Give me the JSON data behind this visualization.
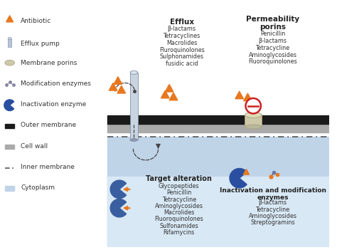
{
  "bg_color": "#ffffff",
  "antibiotic_color": "#e87820",
  "pump_body_color": "#c8d4e0",
  "pump_edge_color": "#8090a8",
  "porin_color": "#ccc8a8",
  "porin_edge": "#aaa080",
  "blue_target_color": "#3a5fa0",
  "inact_blue": "#2a4fa0",
  "outer_mem_color": "#1a1a1a",
  "cell_wall_color": "#aaaaaa",
  "cyto_color": "#c0d4e8",
  "cyto_grad_color": "#d8e8f5",
  "legend_items": [
    "Antibiotic",
    "Efflux pump",
    "Membrane porins",
    "Modification enzymes",
    "Inactivation enzyme",
    "Outer membrane",
    "Cell wall",
    "Inner membrane",
    "Cytoplasm"
  ],
  "efflux_title": "Efflux",
  "efflux_drugs": [
    "β-lactams",
    "Tetracyclines",
    "Macrolides",
    "Fluroquinolones",
    "Sulphonamides",
    "fusidic acid"
  ],
  "permeab_title": "Permeability\nporins",
  "permeab_drugs": [
    "Penicillin",
    "β-lactams",
    "Tetracycline",
    "Aminoglycosides",
    "Fluoroquinolones"
  ],
  "target_title": "Target alteration",
  "target_drugs": [
    "Glycopeptides",
    "Penicillin",
    "Tetracycline",
    "Aminoglycosides",
    "Macrolides",
    "Fluoroquinolones",
    "Sulfonamides",
    "Rifamycins"
  ],
  "inact_title": "Inactivation and modification\nenzymes",
  "inact_drugs": [
    "β-lactams",
    "Tetracycline",
    "Aminoglycosides",
    "Streptogramins"
  ],
  "no_sign_color": "#cc2222"
}
